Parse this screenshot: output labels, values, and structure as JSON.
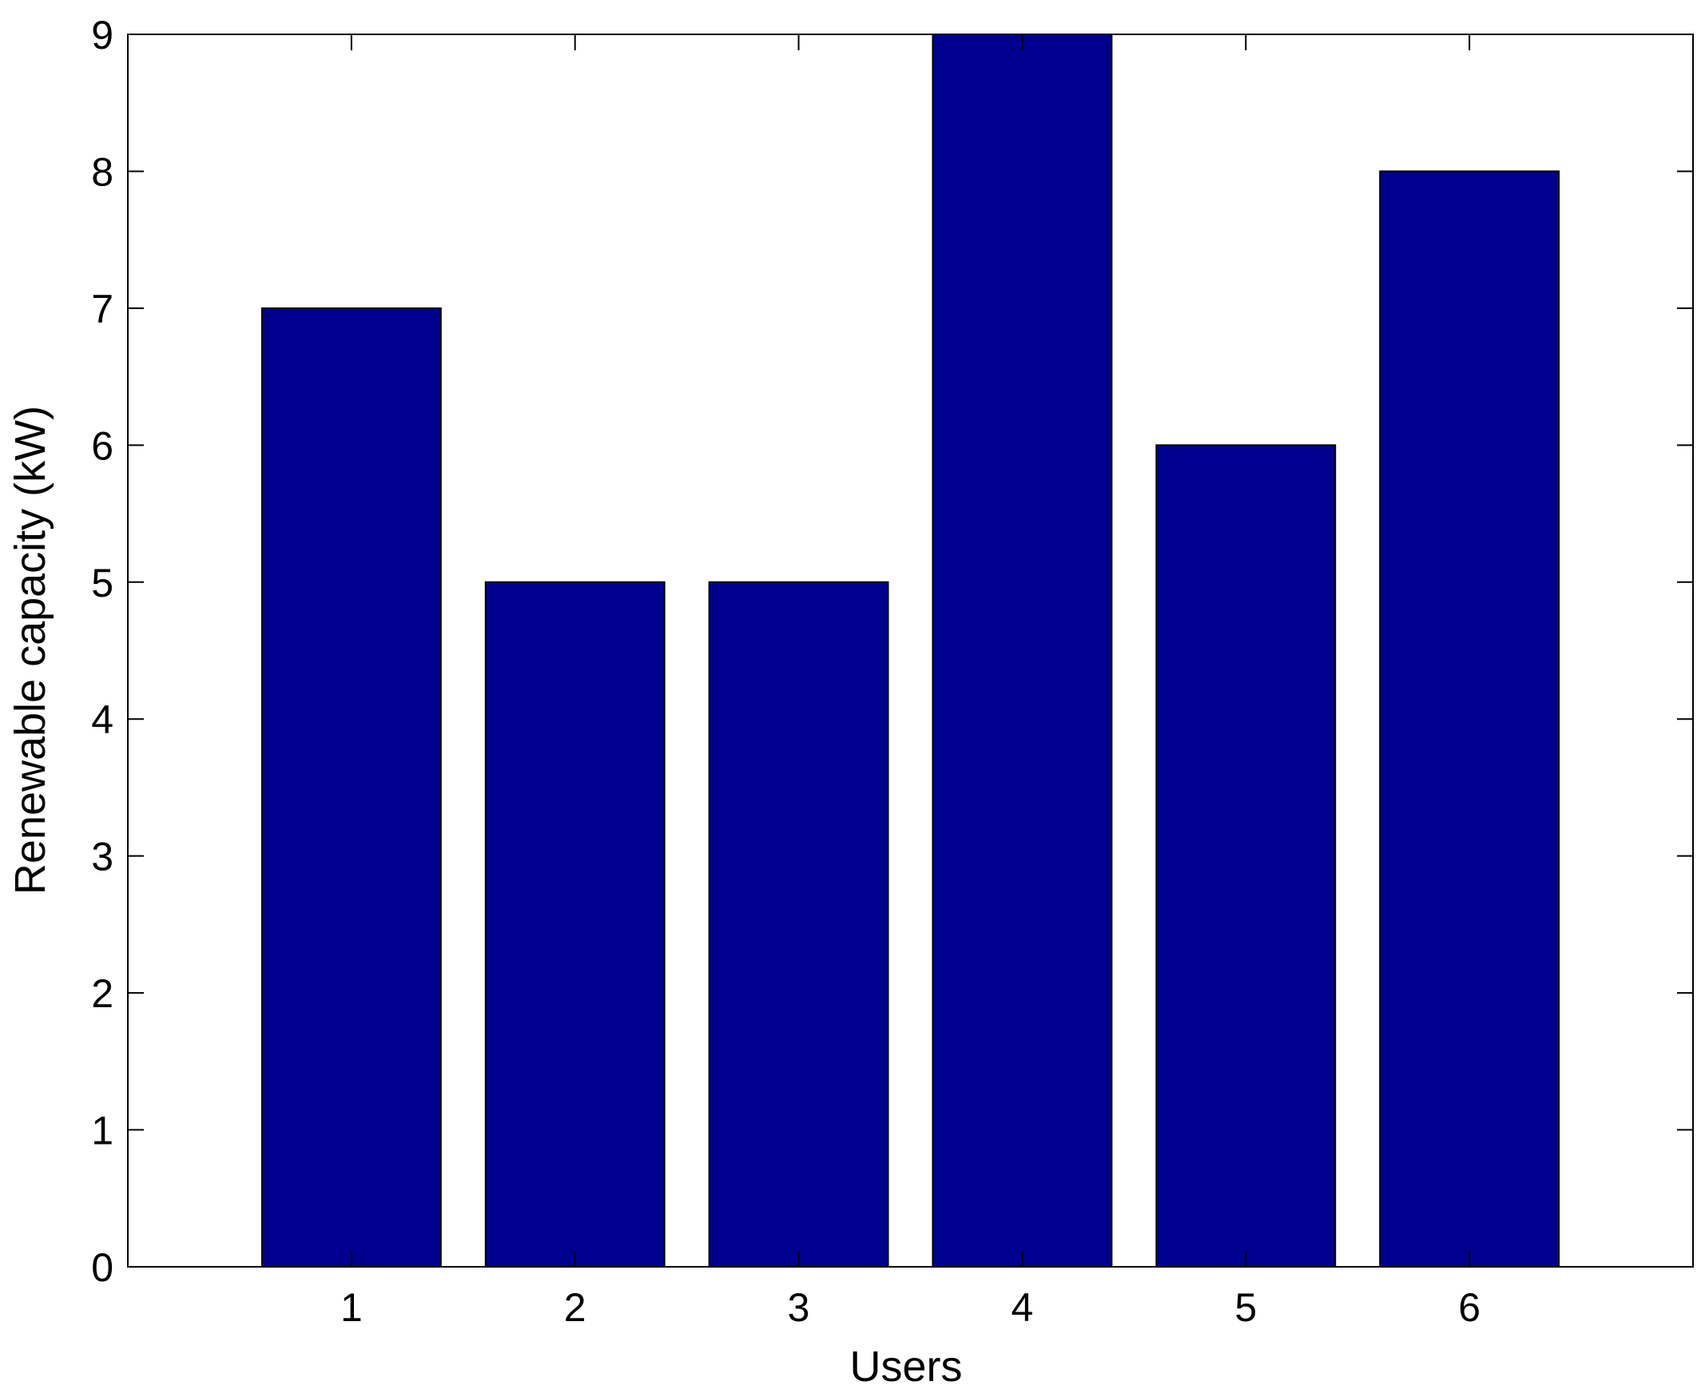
{
  "chart_data": {
    "type": "bar",
    "categories": [
      "1",
      "2",
      "3",
      "4",
      "5",
      "6"
    ],
    "values": [
      7,
      5,
      5,
      9,
      6,
      8
    ],
    "title": "",
    "xlabel": "Users",
    "ylabel": "Renewable capacity (kW)",
    "xlim": [
      0,
      7
    ],
    "ylim": [
      0,
      9
    ],
    "yticks": [
      "0",
      "1",
      "2",
      "3",
      "4",
      "5",
      "6",
      "7",
      "8",
      "9"
    ],
    "grid": false,
    "bar_color": "#00008F",
    "bar_edge_color": "#000000"
  }
}
